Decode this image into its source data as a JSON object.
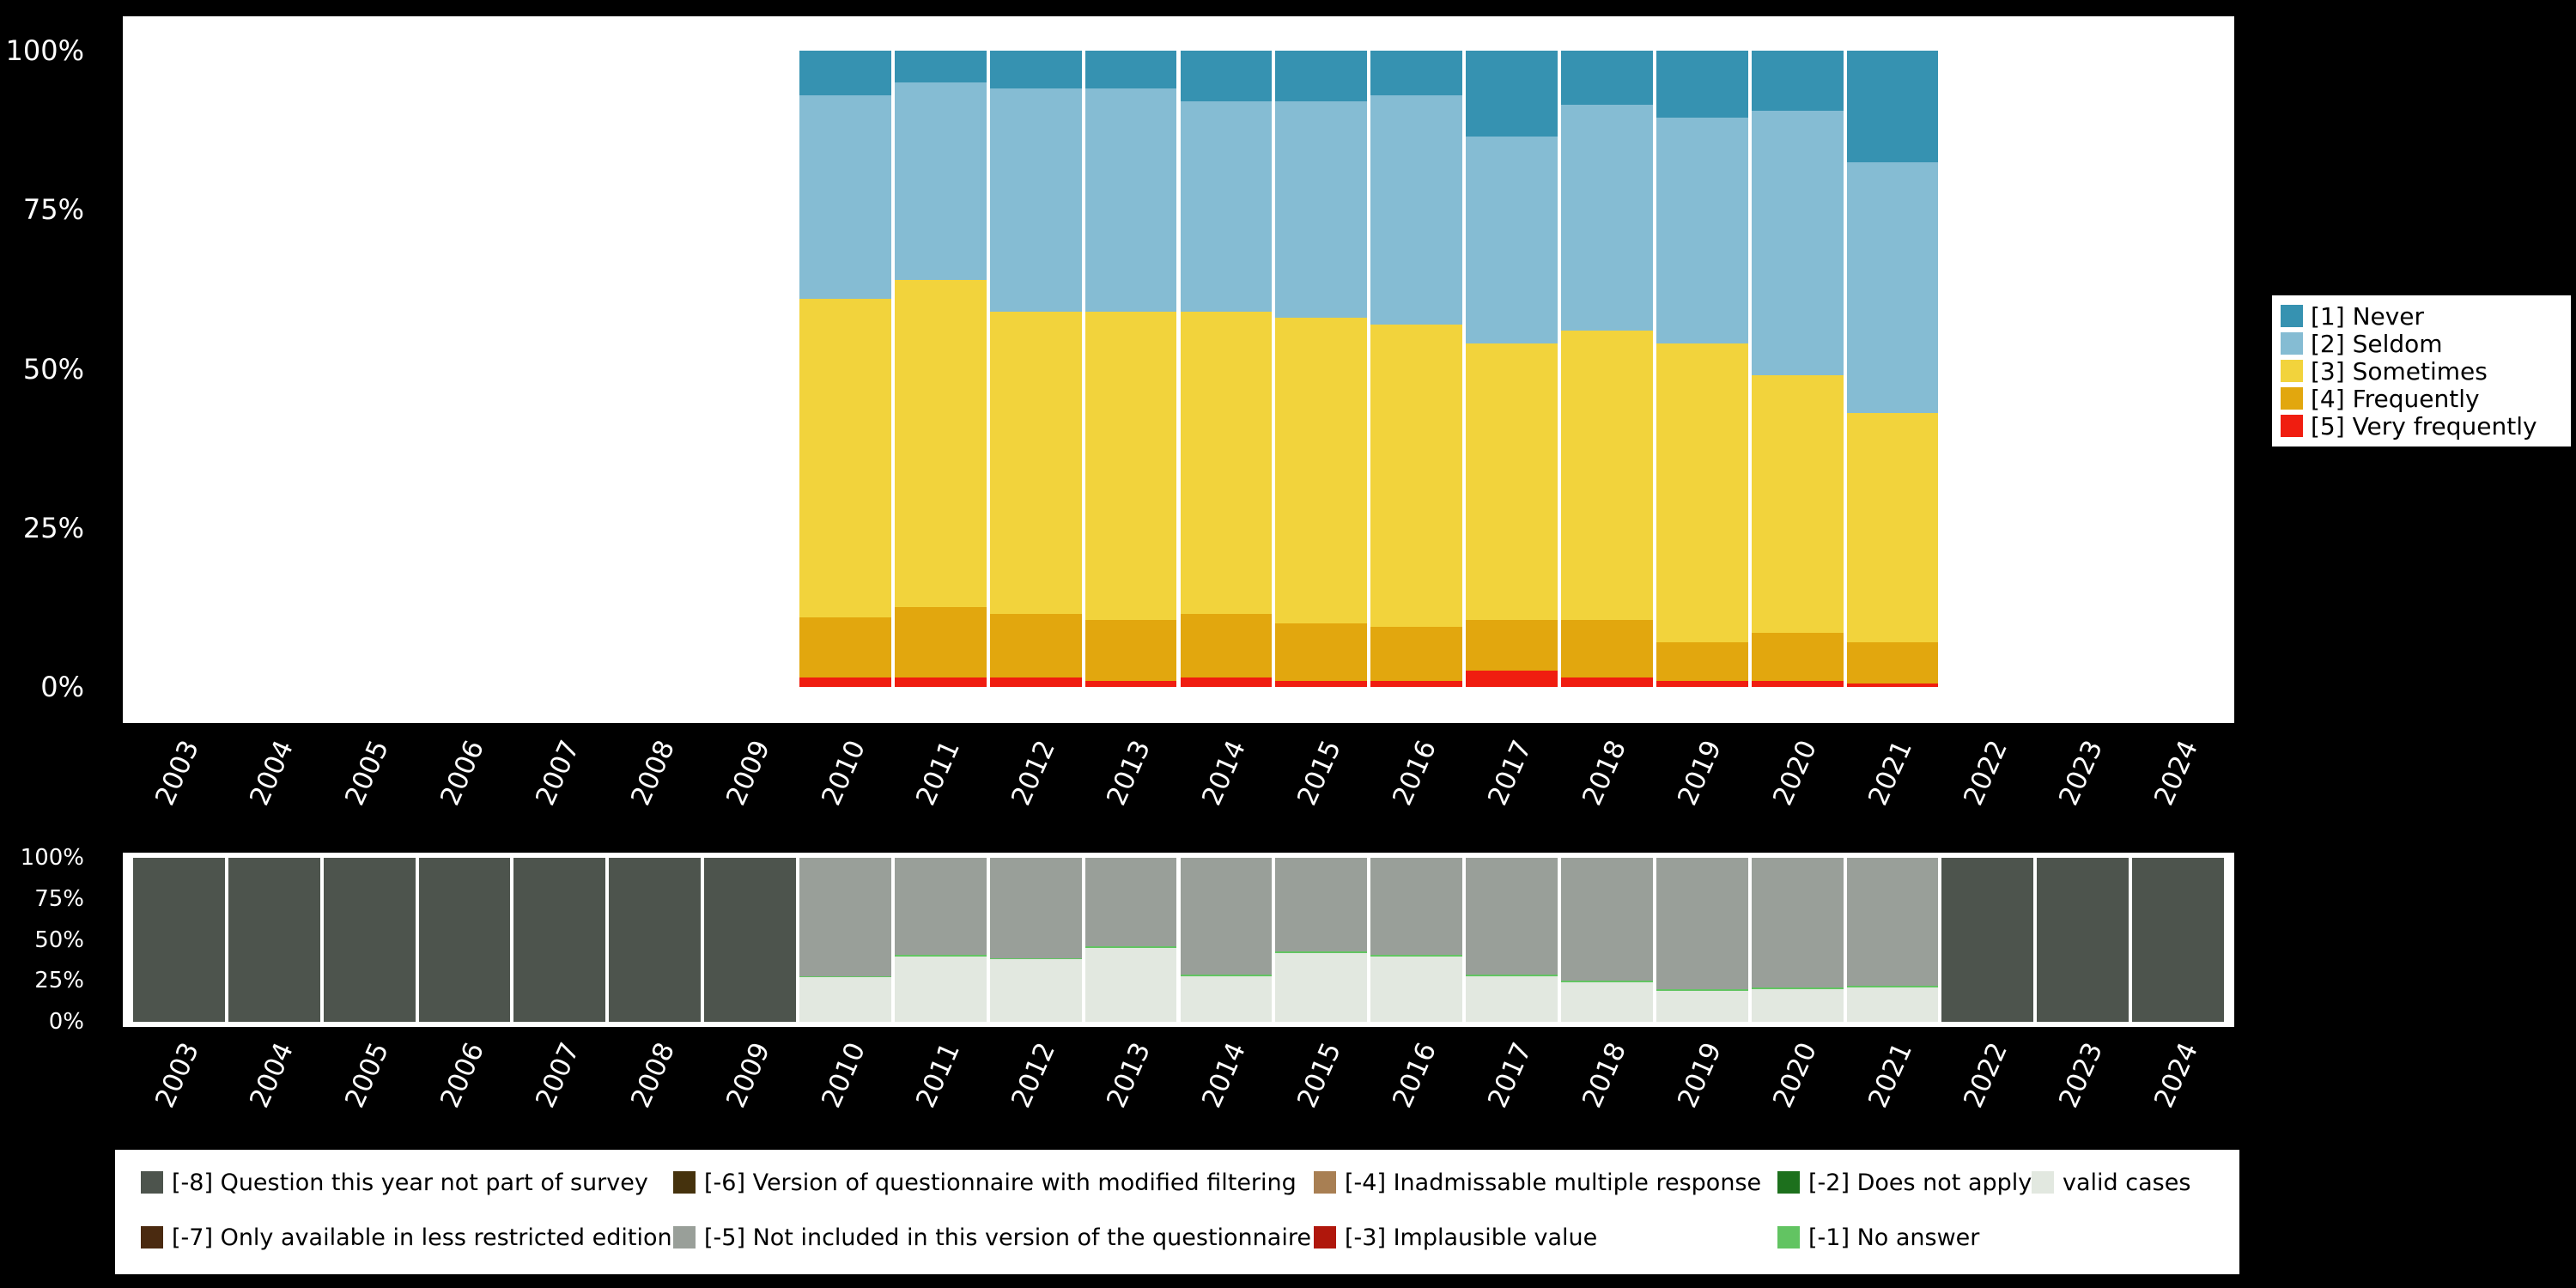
{
  "page": {
    "background": "#000000",
    "plot_background": "#ffffff",
    "axis_text_color": "#ffffff"
  },
  "years": [
    "2003",
    "2004",
    "2005",
    "2006",
    "2007",
    "2008",
    "2009",
    "2010",
    "2011",
    "2012",
    "2013",
    "2014",
    "2015",
    "2016",
    "2017",
    "2018",
    "2019",
    "2020",
    "2021",
    "2022",
    "2023",
    "2024"
  ],
  "yticks": [
    {
      "pct": 0,
      "label": "0%"
    },
    {
      "pct": 25,
      "label": "25%"
    },
    {
      "pct": 50,
      "label": "50%"
    },
    {
      "pct": 75,
      "label": "75%"
    },
    {
      "pct": 100,
      "label": "100%"
    }
  ],
  "chart_data": [
    {
      "name": "frequency-distribution",
      "type": "bar",
      "stacked": true,
      "ylim": [
        0,
        100
      ],
      "grid": false,
      "legend_position": "right",
      "categories": [
        "2003",
        "2004",
        "2005",
        "2006",
        "2007",
        "2008",
        "2009",
        "2010",
        "2011",
        "2012",
        "2013",
        "2014",
        "2015",
        "2016",
        "2017",
        "2018",
        "2019",
        "2020",
        "2021",
        "2022",
        "2023",
        "2024"
      ],
      "series": [
        {
          "name": "[5] Very frequently",
          "color": "#f01d10",
          "values": [
            0,
            0,
            0,
            0,
            0,
            0,
            0,
            1.5,
            1.5,
            1.5,
            1,
            1.5,
            1,
            1,
            2.5,
            1.5,
            1,
            1,
            0.5,
            0,
            0,
            0
          ]
        },
        {
          "name": "[4] Frequently",
          "color": "#e2a70e",
          "values": [
            0,
            0,
            0,
            0,
            0,
            0,
            0,
            9.5,
            11,
            10,
            9.5,
            10,
            9,
            8.5,
            8,
            9,
            6,
            7.5,
            6.5,
            0,
            0,
            0
          ]
        },
        {
          "name": "[3] Sometimes",
          "color": "#f2d33c",
          "values": [
            0,
            0,
            0,
            0,
            0,
            0,
            0,
            50,
            51.5,
            47.5,
            48.5,
            47.5,
            48,
            47.5,
            43.5,
            45.5,
            47,
            40.5,
            36,
            0,
            0,
            0
          ]
        },
        {
          "name": "[2] Seldom",
          "color": "#85bcd3",
          "values": [
            0,
            0,
            0,
            0,
            0,
            0,
            0,
            32,
            31,
            35,
            35,
            33,
            34,
            36,
            32.5,
            35.5,
            35.5,
            41.5,
            39.5,
            0,
            0,
            0
          ]
        },
        {
          "name": "[1] Never",
          "color": "#3692b1",
          "values": [
            0,
            0,
            0,
            0,
            0,
            0,
            0,
            7,
            5,
            6,
            6,
            8,
            8,
            7,
            13.5,
            8.5,
            10.5,
            9.5,
            17.5,
            0,
            0,
            0
          ]
        }
      ]
    },
    {
      "name": "missing-values-distribution",
      "type": "bar",
      "stacked": true,
      "ylim": [
        0,
        100
      ],
      "grid": false,
      "legend_position": "bottom",
      "categories": [
        "2003",
        "2004",
        "2005",
        "2006",
        "2007",
        "2008",
        "2009",
        "2010",
        "2011",
        "2012",
        "2013",
        "2014",
        "2015",
        "2016",
        "2017",
        "2018",
        "2019",
        "2020",
        "2021",
        "2022",
        "2023",
        "2024"
      ],
      "series": [
        {
          "name": "valid cases",
          "color": "#e2e8e0",
          "values": [
            0,
            0,
            0,
            0,
            0,
            0,
            0,
            27,
            40,
            38,
            45,
            28,
            42,
            40,
            28,
            24,
            19,
            20,
            21,
            0,
            0,
            0
          ]
        },
        {
          "name": "[-1] No answer",
          "color": "#62c462",
          "values": [
            0,
            0,
            0,
            0,
            0,
            0,
            0,
            1,
            1,
            1,
            1,
            1,
            1,
            1,
            1,
            1,
            1,
            1,
            1,
            0,
            0,
            0
          ]
        },
        {
          "name": "[-5] Not included in this version of the questionnaire",
          "color": "#999f99",
          "values": [
            0,
            0,
            0,
            0,
            0,
            0,
            0,
            72,
            59,
            61,
            54,
            71,
            57,
            59,
            71,
            75,
            80,
            79,
            78,
            0,
            0,
            0
          ]
        },
        {
          "name": "[-8] Question this year not part of survey",
          "color": "#4d544d",
          "values": [
            100,
            100,
            100,
            100,
            100,
            100,
            100,
            0,
            0,
            0,
            0,
            0,
            0,
            0,
            0,
            0,
            0,
            0,
            0,
            100,
            100,
            100
          ]
        }
      ]
    }
  ],
  "top_legend": {
    "items": [
      {
        "label": "[1] Never",
        "color": "#3692b1"
      },
      {
        "label": "[2] Seldom",
        "color": "#85bcd3"
      },
      {
        "label": "[3] Sometimes",
        "color": "#f2d33c"
      },
      {
        "label": "[4] Frequently",
        "color": "#e2a70e"
      },
      {
        "label": "[5] Very frequently",
        "color": "#f01d10"
      }
    ]
  },
  "bottom_legend": {
    "rows": [
      [
        {
          "label": "[-8] Question this year not part of survey",
          "color": "#4d544d"
        },
        {
          "label": "[-6] Version of questionnaire with modified filtering",
          "color": "#45320d"
        },
        {
          "label": "[-4] Inadmissable multiple response",
          "color": "#a87f53"
        },
        {
          "label": "[-2] Does not apply",
          "color": "#1d701d"
        },
        {
          "label": "valid cases",
          "color": "#e2e8e0"
        }
      ],
      [
        {
          "label": "[-7] Only available in less restricted edition",
          "color": "#4a2a10"
        },
        {
          "label": "[-5] Not included in this version of the questionnaire",
          "color": "#999f99"
        },
        {
          "label": "[-3] Implausible value",
          "color": "#b0170c"
        },
        {
          "label": "[-1] No answer",
          "color": "#62c462"
        }
      ]
    ]
  }
}
